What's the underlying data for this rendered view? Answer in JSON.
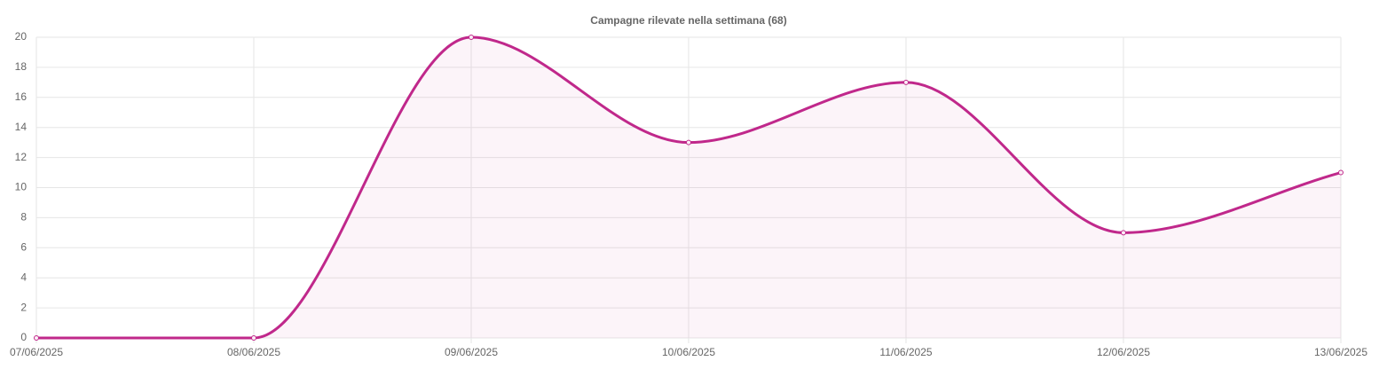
{
  "chart_data": {
    "type": "line",
    "title": "Campagne rilevate nella settimana (68)",
    "categories": [
      "07/06/2025",
      "08/06/2025",
      "09/06/2025",
      "10/06/2025",
      "11/06/2025",
      "12/06/2025",
      "13/06/2025"
    ],
    "series": [
      {
        "color": "#c0288b",
        "values": [
          0,
          0,
          20,
          13,
          17,
          7,
          11
        ]
      }
    ],
    "ylim": [
      0,
      20
    ],
    "yticks": [
      0,
      2,
      4,
      6,
      8,
      10,
      12,
      14,
      16,
      18,
      20
    ],
    "grid": true,
    "fill": true
  }
}
